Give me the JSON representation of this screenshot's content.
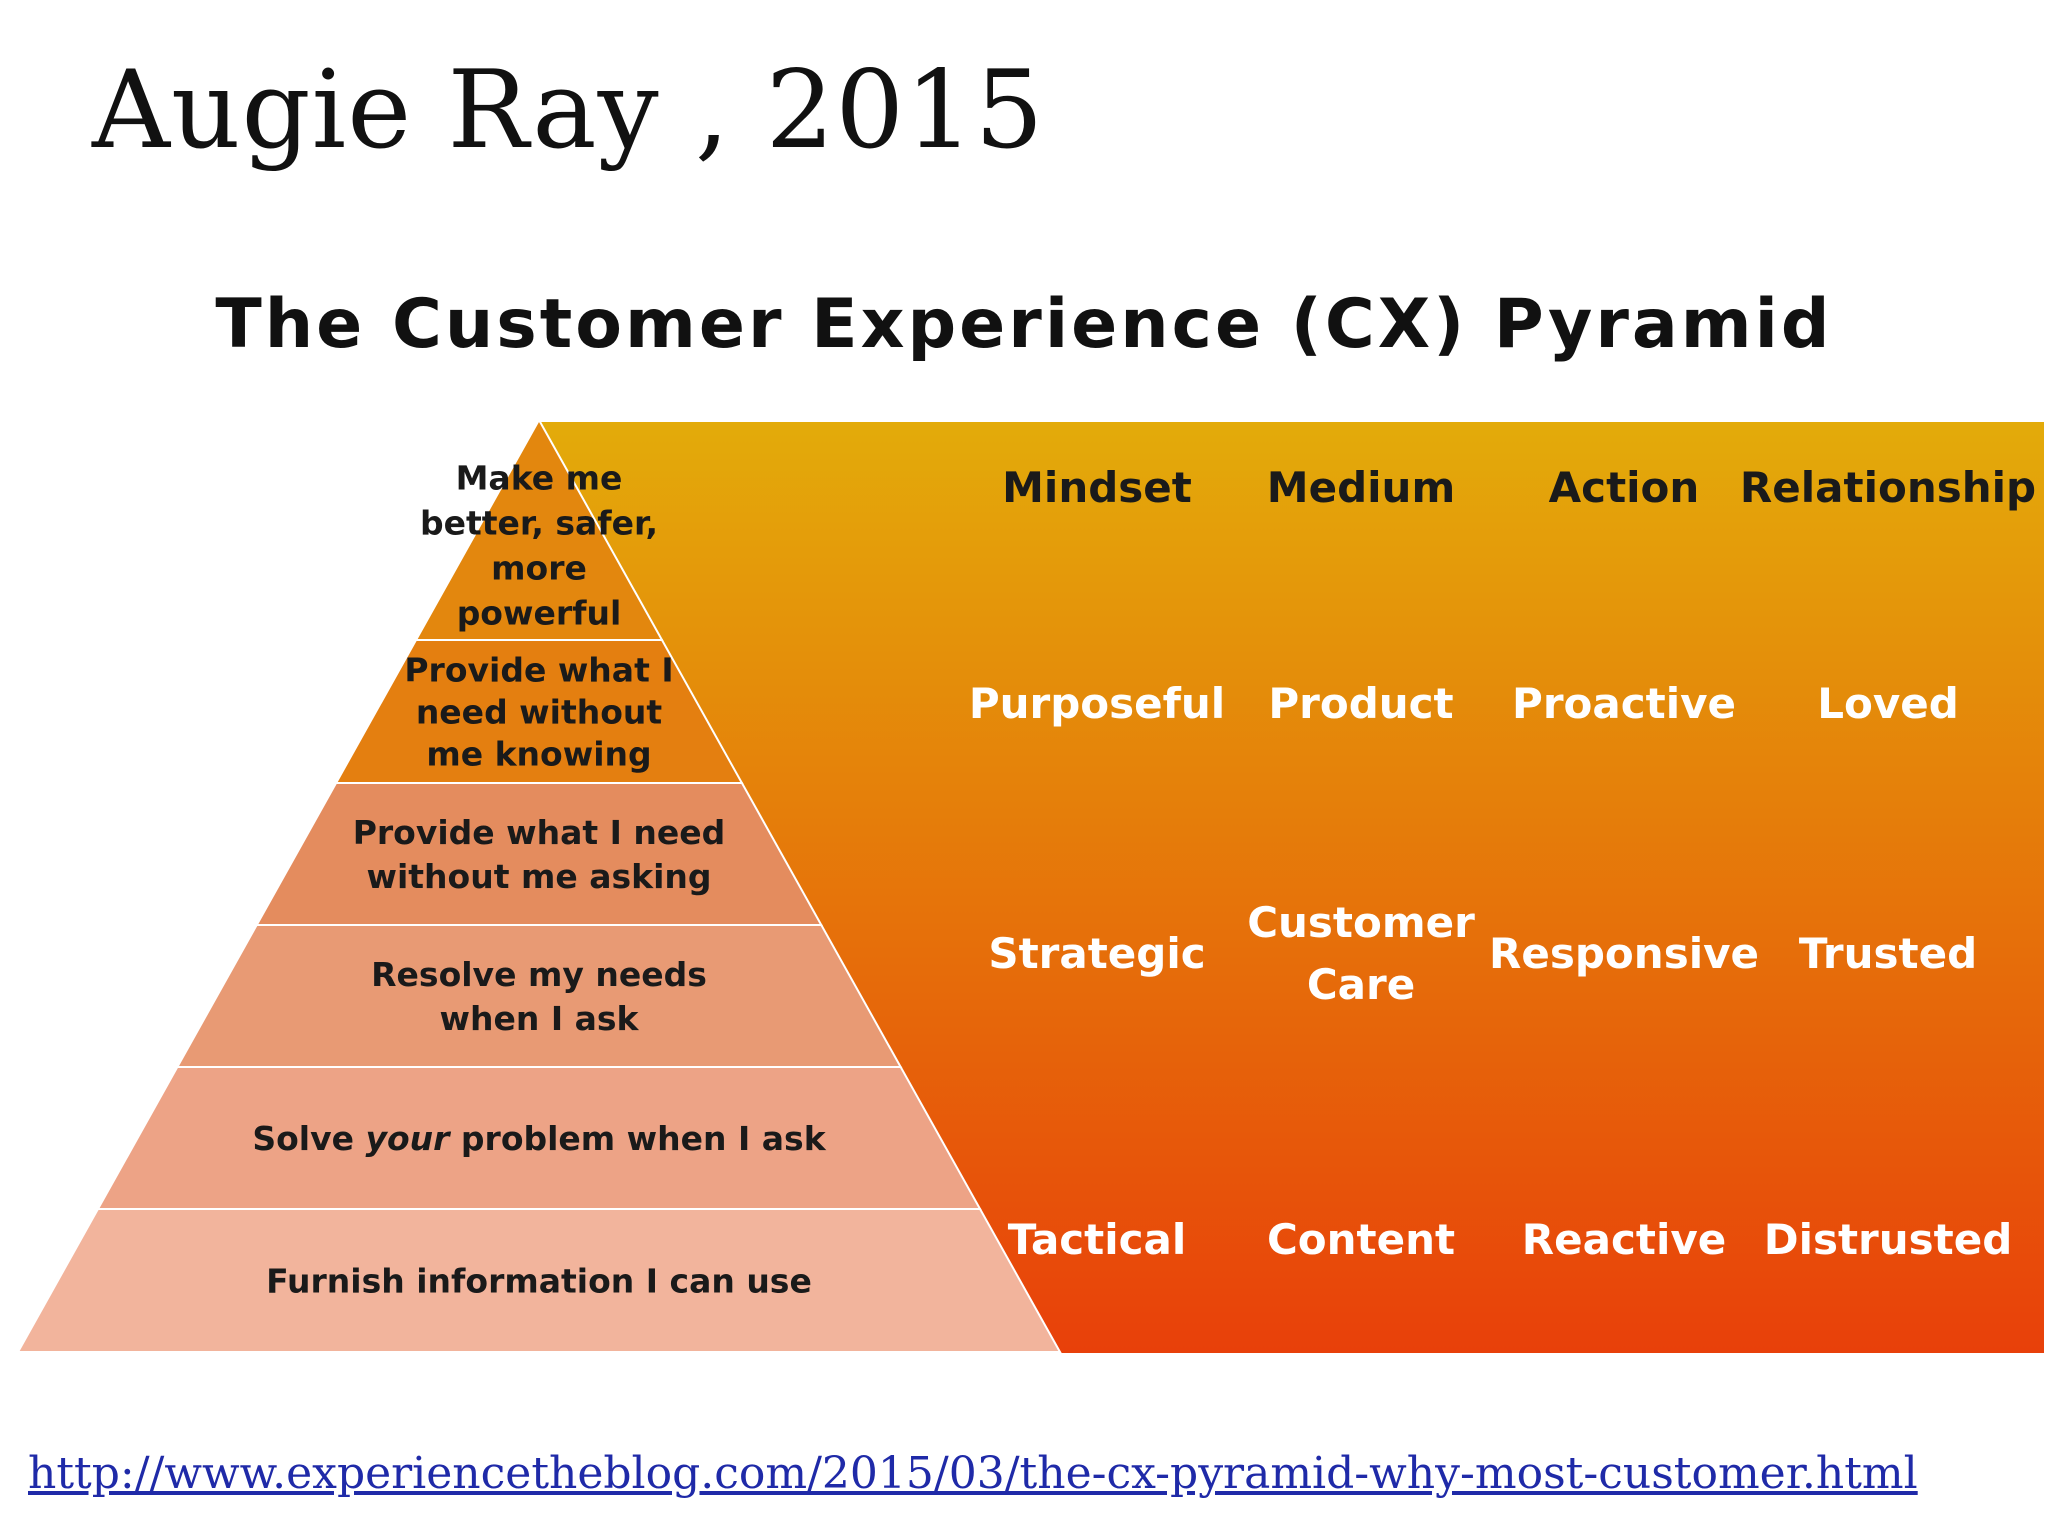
{
  "slide": {
    "title": "Augie Ray , 2015",
    "source_link": "http://www.experiencetheblog.com/2015/03/the-cx-pyramid-why-most-customer.html"
  },
  "diagram": {
    "title": "The Customer Experience (CX) Pyramid",
    "tiers": [
      {
        "lines": [
          "Make me",
          "better, safer,",
          "more",
          "powerful"
        ],
        "color": "#e3870e"
      },
      {
        "lines": [
          "Provide what I",
          "need without",
          "me knowing"
        ],
        "color": "#e47f10"
      },
      {
        "lines": [
          "Provide what I need",
          "without me asking"
        ],
        "color": "#e48c5e"
      },
      {
        "lines": [
          "Resolve my needs",
          "when I ask"
        ],
        "color": "#e89a74"
      },
      {
        "lines": [
          "Solve ",
          "your",
          " problem when I ask"
        ],
        "color": "#eda386"
      },
      {
        "lines": [
          "Furnish information I can use"
        ],
        "color": "#f2b49c"
      }
    ],
    "columns": [
      "Mindset",
      "Medium",
      "Action",
      "Relationship"
    ],
    "rows": [
      [
        "Purposeful",
        "Product",
        "Proactive",
        "Loved"
      ],
      [
        "Strategic",
        "Customer Care",
        "Responsive",
        "Trusted"
      ],
      [
        "Tactical",
        "Content",
        "Reactive",
        "Distrusted"
      ]
    ],
    "panel_gradient": [
      "#e3ab0a",
      "#e8400a"
    ]
  }
}
